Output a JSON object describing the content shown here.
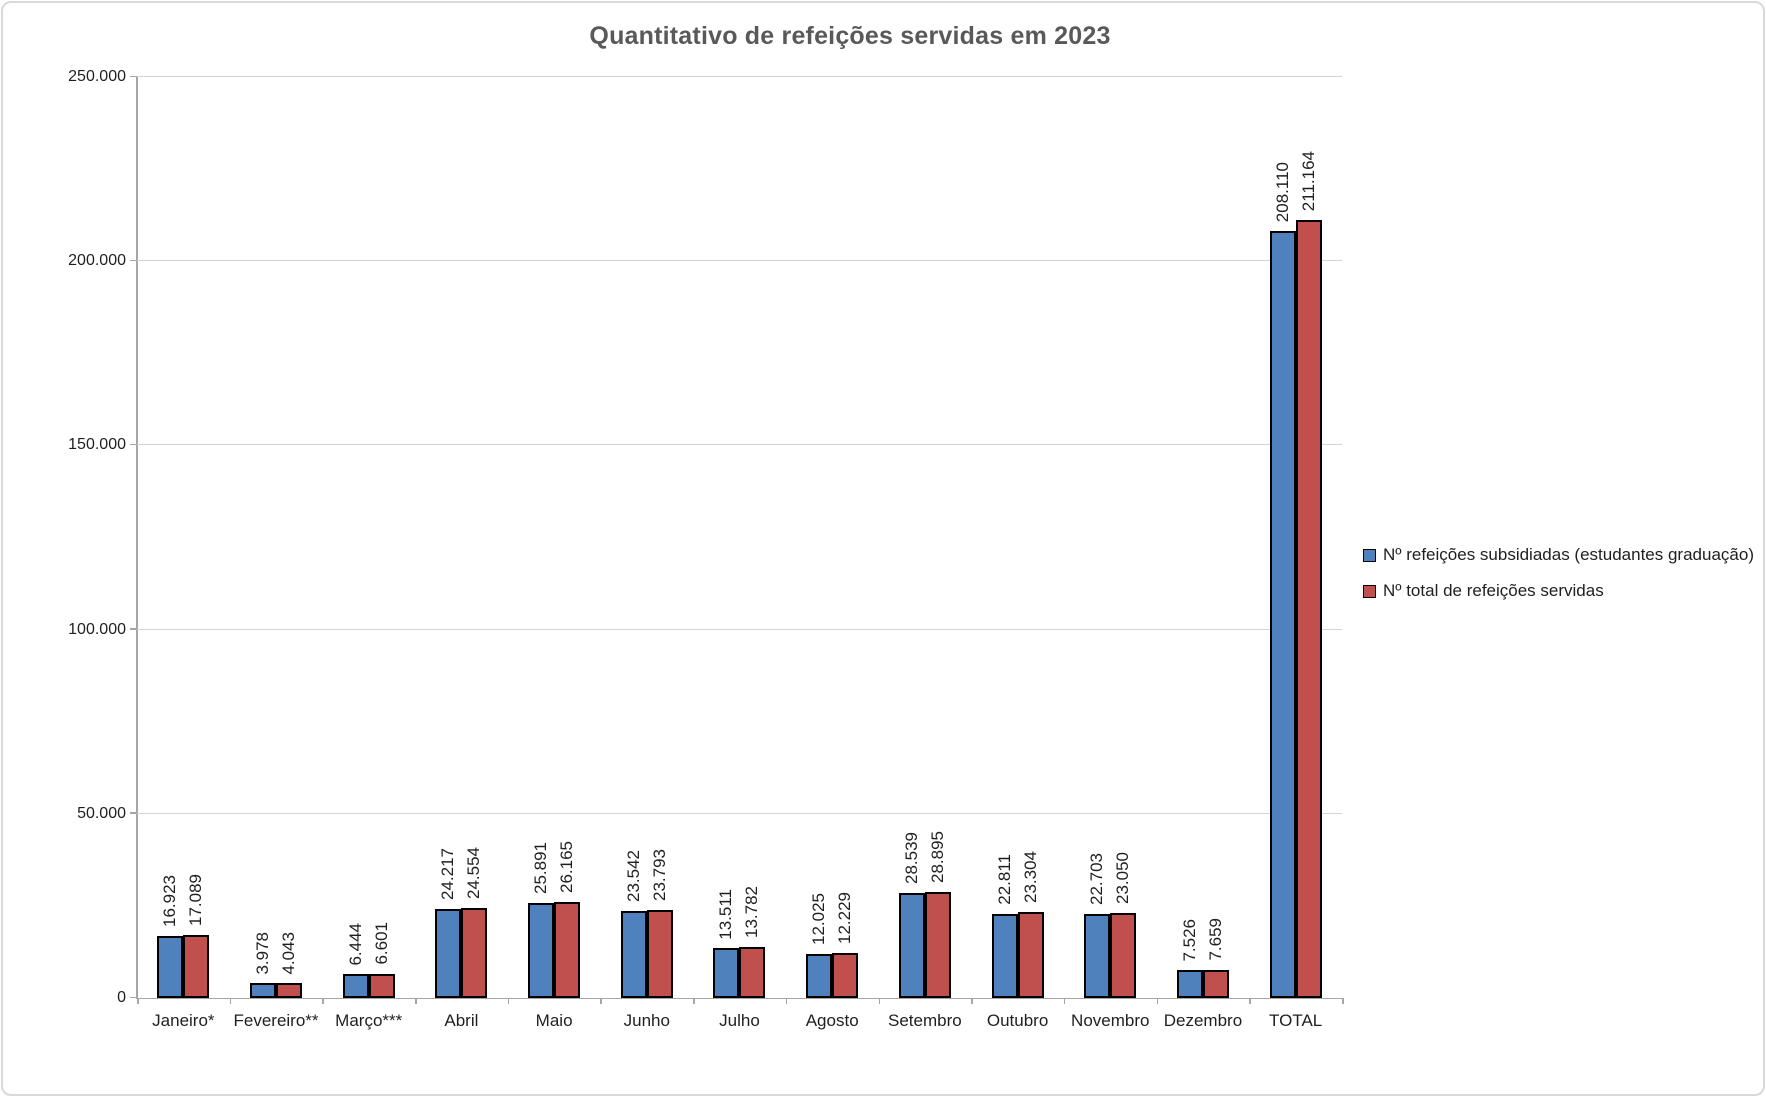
{
  "colors": {
    "series_subsidized": "#4F81BD",
    "series_total": "#C0504D",
    "bar_border": "#000000",
    "gridline": "#D4D4D4",
    "axis": "#A6A6A6",
    "title_text": "#595959",
    "label_text": "#1f1f1f",
    "chart_border": "#D9D9D9",
    "background": "#FFFFFF"
  },
  "chart_data": {
    "type": "bar",
    "title": "Quantitativo de refeições servidas em 2023",
    "categories": [
      "Janeiro*",
      "Fevereiro**",
      "Março***",
      "Abril",
      "Maio",
      "Junho",
      "Julho",
      "Agosto",
      "Setembro",
      "Outubro",
      "Novembro",
      "Dezembro",
      "TOTAL"
    ],
    "series": [
      {
        "name": "Nº refeições subsidiadas (estudantes graduação)",
        "color": "#4F81BD",
        "values": [
          16923,
          3978,
          6444,
          24217,
          25891,
          23542,
          13511,
          12025,
          28539,
          22811,
          22703,
          7526,
          208110
        ],
        "labels": [
          "16.923",
          "3.978",
          "6.444",
          "24.217",
          "25.891",
          "23.542",
          "13.511",
          "12.025",
          "28.539",
          "22.811",
          "22.703",
          "7.526",
          "208.110"
        ]
      },
      {
        "name": "Nº total de refeições servidas",
        "color": "#C0504D",
        "values": [
          17089,
          4043,
          6601,
          24554,
          26165,
          23793,
          13782,
          12229,
          28895,
          23304,
          23050,
          7659,
          211164
        ],
        "labels": [
          "17.089",
          "4.043",
          "6.601",
          "24.554",
          "26.165",
          "23.793",
          "13.782",
          "12.229",
          "28.895",
          "23.304",
          "23.050",
          "7.659",
          "211.164"
        ]
      }
    ],
    "xlabel": "",
    "ylabel": "",
    "ylim": [
      0,
      250000
    ],
    "ytick_interval": 50000,
    "yticks": [
      "0",
      "50.000",
      "100.000",
      "150.000",
      "200.000",
      "250.000"
    ],
    "grid": true,
    "legend_position": "right",
    "data_label_rotation": 270
  }
}
